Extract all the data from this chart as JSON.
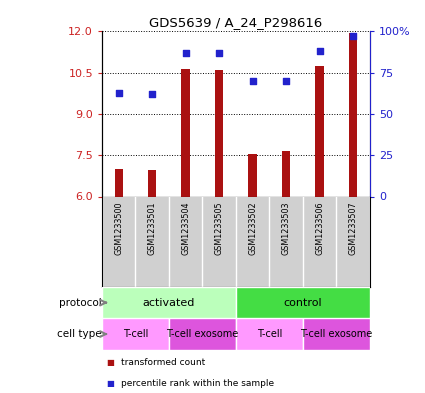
{
  "title": "GDS5639 / A_24_P298616",
  "samples": [
    "GSM1233500",
    "GSM1233501",
    "GSM1233504",
    "GSM1233505",
    "GSM1233502",
    "GSM1233503",
    "GSM1233506",
    "GSM1233507"
  ],
  "bar_values": [
    7.0,
    6.95,
    10.65,
    10.6,
    7.55,
    7.65,
    10.75,
    11.95
  ],
  "dot_values": [
    63,
    62,
    87,
    87,
    70,
    70,
    88,
    97
  ],
  "ylim": [
    6,
    12
  ],
  "yticks_left": [
    6,
    7.5,
    9,
    10.5,
    12
  ],
  "yticks_right": [
    0,
    25,
    50,
    75,
    100
  ],
  "bar_color": "#AA1111",
  "dot_color": "#2222CC",
  "bar_width": 0.25,
  "protocol_groups": [
    {
      "label": "activated",
      "start": 0,
      "end": 4,
      "color": "#BBFFBB"
    },
    {
      "label": "control",
      "start": 4,
      "end": 8,
      "color": "#44DD44"
    }
  ],
  "cell_type_groups": [
    {
      "label": "T-cell",
      "start": 0,
      "end": 2,
      "color": "#FF99FF"
    },
    {
      "label": "T-cell exosome",
      "start": 2,
      "end": 4,
      "color": "#DD55DD"
    },
    {
      "label": "T-cell",
      "start": 4,
      "end": 6,
      "color": "#FF99FF"
    },
    {
      "label": "T-cell exosome",
      "start": 6,
      "end": 8,
      "color": "#DD55DD"
    }
  ],
  "legend_items": [
    {
      "label": "transformed count",
      "color": "#AA1111"
    },
    {
      "label": "percentile rank within the sample",
      "color": "#2222CC"
    }
  ],
  "protocol_label": "protocol",
  "cell_type_label": "cell type",
  "right_axis_color": "#2222CC",
  "left_axis_color": "#CC2222",
  "sample_bg_color": "#D0D0D0",
  "sample_divider_color": "#FFFFFF",
  "fig_width": 4.25,
  "fig_height": 3.93,
  "dpi": 100
}
